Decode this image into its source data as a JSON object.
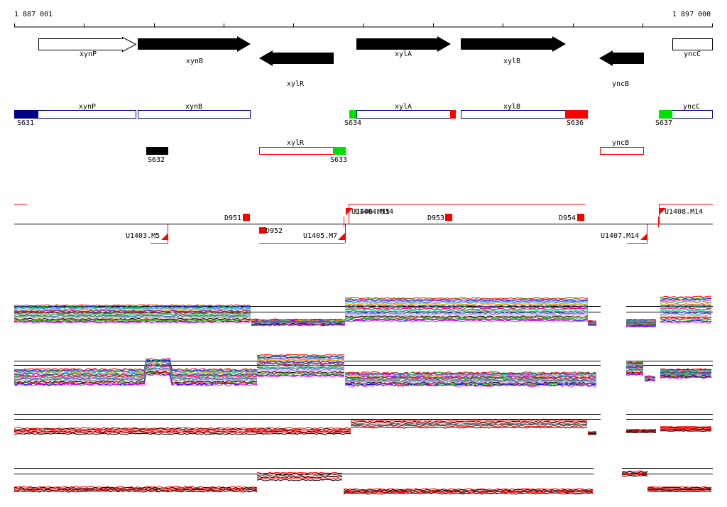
{
  "ruler": {
    "start_label": "1 887 001",
    "end_label": "1 897 000"
  },
  "genes": [
    {
      "name": "xynP",
      "strand": "+",
      "style": "open"
    },
    {
      "name": "xynB",
      "strand": "+",
      "style": "filled"
    },
    {
      "name": "xylR",
      "strand": "-",
      "style": "filled"
    },
    {
      "name": "xylA",
      "strand": "+",
      "style": "filled"
    },
    {
      "name": "xylB",
      "strand": "+",
      "style": "filled"
    },
    {
      "name": "yncB",
      "strand": "-",
      "style": "filled"
    },
    {
      "name": "yncC",
      "strand": "+",
      "style": "open"
    }
  ],
  "segments": [
    {
      "label": "S631",
      "color": "#00008b"
    },
    {
      "label": "S632",
      "color": "#000000"
    },
    {
      "label": "S633",
      "color": "#00e000"
    },
    {
      "label": "S634",
      "color": "#00e000"
    },
    {
      "label": "S636",
      "color": "#ff0000"
    },
    {
      "label": "S637",
      "color": "#00e000"
    }
  ],
  "transcript_labels": {
    "top_row": [
      "xynP",
      "xynB",
      "xylA",
      "xylB",
      "yncC"
    ],
    "bottom_row": [
      "xylR",
      "yncB"
    ]
  },
  "features": [
    {
      "label": "D951"
    },
    {
      "label": "D952"
    },
    {
      "label": "D953"
    },
    {
      "label": "D954"
    },
    {
      "label": "U1403.M5"
    },
    {
      "label": "U1405.M7"
    },
    {
      "label": "U1406.M15"
    },
    {
      "label": "U1404.M14"
    },
    {
      "label": "U1407.M14"
    },
    {
      "label": "U1408.M14"
    }
  ],
  "colors": {
    "gene_fill": "#000000",
    "transcript_fwd": "#00008b",
    "transcript_rev": "#ff0000",
    "feature_red": "#ff0000"
  }
}
